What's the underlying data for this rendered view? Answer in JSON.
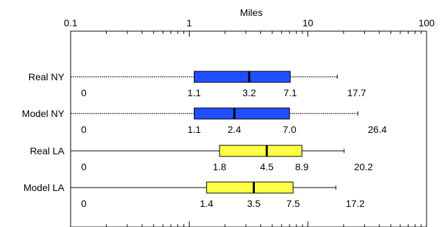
{
  "chart_data": {
    "type": "box",
    "title": "",
    "xlabel": "Miles",
    "ylabel": "",
    "x_scale": "log",
    "xlim": [
      0.1,
      100
    ],
    "x_ticks": [
      {
        "value": 0.1,
        "label": "0.1"
      },
      {
        "value": 1,
        "label": "1"
      },
      {
        "value": 10,
        "label": "10"
      },
      {
        "value": 100,
        "label": "100"
      }
    ],
    "grid": false,
    "categories": [
      "Real NY",
      "Model NY",
      "Real LA",
      "Model LA"
    ],
    "series": [
      {
        "category": "Real NY",
        "min": 0,
        "q1": 1.1,
        "median": 3.2,
        "q3": 7.1,
        "max": 17.7,
        "labels": [
          "0",
          "1.1",
          "3.2",
          "7.1",
          "17.7"
        ],
        "color": "#1f4fff",
        "whisker_style": "dotted"
      },
      {
        "category": "Model NY",
        "min": 0,
        "q1": 1.1,
        "median": 2.4,
        "q3": 7.0,
        "max": 26.4,
        "labels": [
          "0",
          "1.1",
          "2.4",
          "7.0",
          "26.4"
        ],
        "color": "#1f4fff",
        "whisker_style": "dotted"
      },
      {
        "category": "Real LA",
        "min": 0,
        "q1": 1.8,
        "median": 4.5,
        "q3": 8.9,
        "max": 20.2,
        "labels": [
          "0",
          "1.8",
          "4.5",
          "8.9",
          "20.2"
        ],
        "color": "#ffff44",
        "whisker_style": "solid"
      },
      {
        "category": "Model LA",
        "min": 0,
        "q1": 1.4,
        "median": 3.5,
        "q3": 7.5,
        "max": 17.2,
        "labels": [
          "0",
          "1.4",
          "3.5",
          "7.5",
          "17.2"
        ],
        "color": "#ffff44",
        "whisker_style": "solid"
      }
    ]
  }
}
